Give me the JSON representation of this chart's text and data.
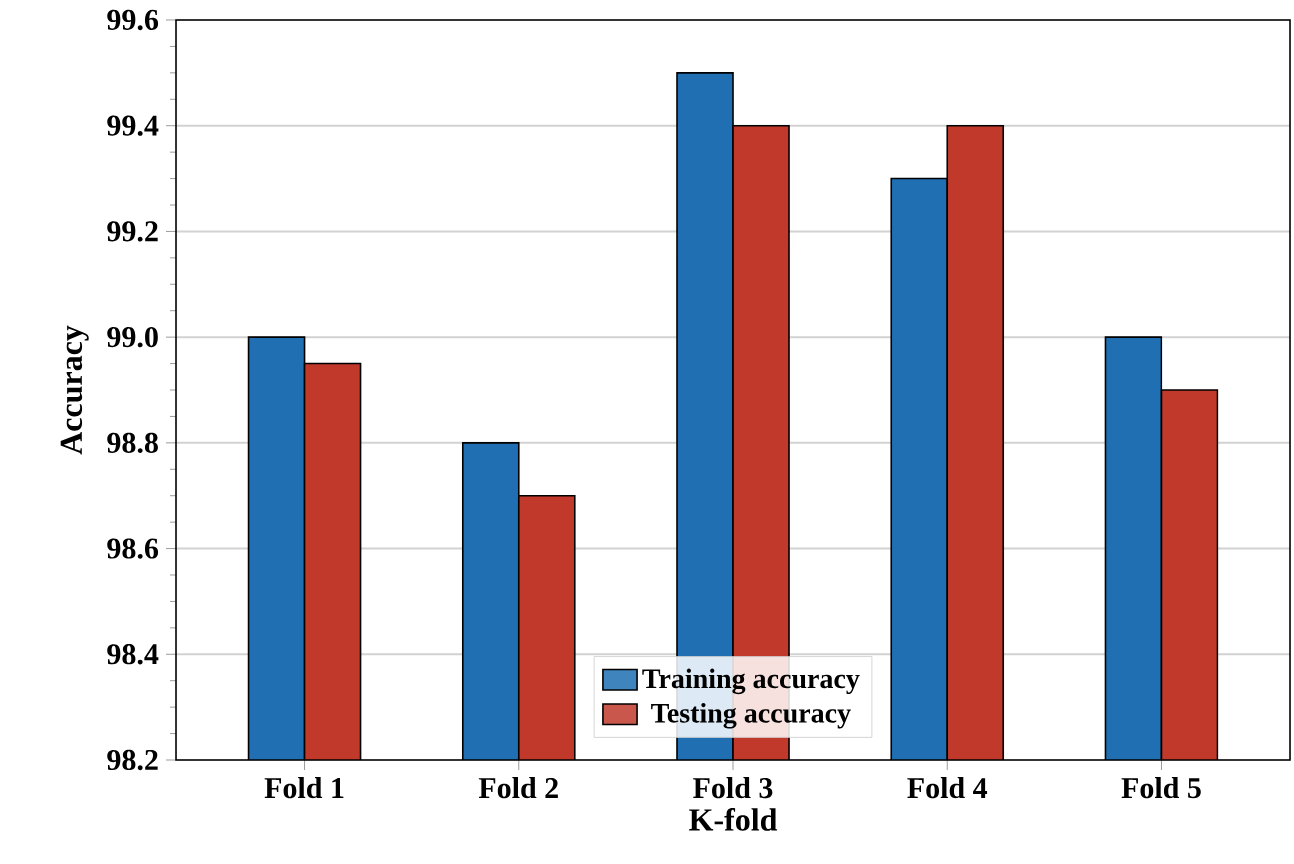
{
  "chart_data": {
    "type": "bar",
    "xlabel": "K-fold",
    "ylabel": "Accuracy",
    "categories": [
      "Fold 1",
      "Fold 2",
      "Fold 3",
      "Fold 4",
      "Fold 5"
    ],
    "series": [
      {
        "name": "Training accuracy",
        "color": "#1f6fb2",
        "values": [
          99.0,
          98.8,
          99.5,
          99.3,
          99.0
        ]
      },
      {
        "name": "Testing accuracy",
        "color": "#c0392b",
        "values": [
          98.95,
          98.7,
          99.4,
          99.4,
          98.9
        ]
      }
    ],
    "ylim": [
      98.2,
      99.6
    ],
    "yticks": [
      98.2,
      98.4,
      98.6,
      98.8,
      {
        "value": 99.0,
        "label": "99.0"
      },
      99.2,
      99.4,
      99.6
    ],
    "grid": "y",
    "legend": "bottom"
  }
}
